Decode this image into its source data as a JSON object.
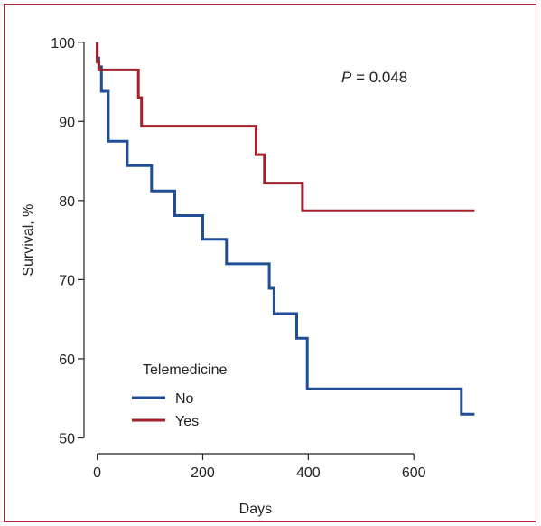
{
  "chart_data": {
    "type": "line",
    "title": "",
    "xlabel": "Days",
    "ylabel": "Survival, %",
    "xlim": [
      -25,
      740
    ],
    "ylim": [
      48,
      101
    ],
    "xticks": [
      0,
      200,
      400,
      600
    ],
    "yticks": [
      50,
      60,
      70,
      80,
      90,
      100
    ],
    "annotation": {
      "italic": "P",
      "rest": " = 0.048"
    },
    "legend": {
      "title": "Telemedicine",
      "placement": "bottom-left"
    },
    "series": [
      {
        "name": "No",
        "color": "#1f4e96",
        "x": [
          0,
          0,
          3,
          3,
          8,
          8,
          21,
          21,
          57,
          57,
          103,
          103,
          147,
          147,
          200,
          200,
          245,
          245,
          326,
          326,
          335,
          335,
          378,
          378,
          398,
          398,
          690,
          690,
          715
        ],
        "y": [
          100,
          98,
          98,
          96.9,
          96.9,
          93.8,
          93.8,
          87.5,
          87.5,
          84.4,
          84.4,
          81.2,
          81.2,
          78.1,
          78.1,
          75.1,
          75.1,
          72,
          72,
          68.9,
          68.9,
          65.7,
          65.7,
          62.6,
          62.6,
          56.2,
          56.2,
          53,
          53
        ]
      },
      {
        "name": "Yes",
        "color": "#a3202c",
        "x": [
          0,
          0,
          3,
          3,
          78,
          78,
          84,
          84,
          301,
          301,
          317,
          317,
          389,
          389,
          715
        ],
        "y": [
          100,
          97.5,
          97.5,
          96.5,
          96.5,
          93,
          93,
          89.4,
          89.4,
          85.8,
          85.8,
          82.2,
          82.2,
          78.7,
          78.7
        ]
      }
    ]
  }
}
